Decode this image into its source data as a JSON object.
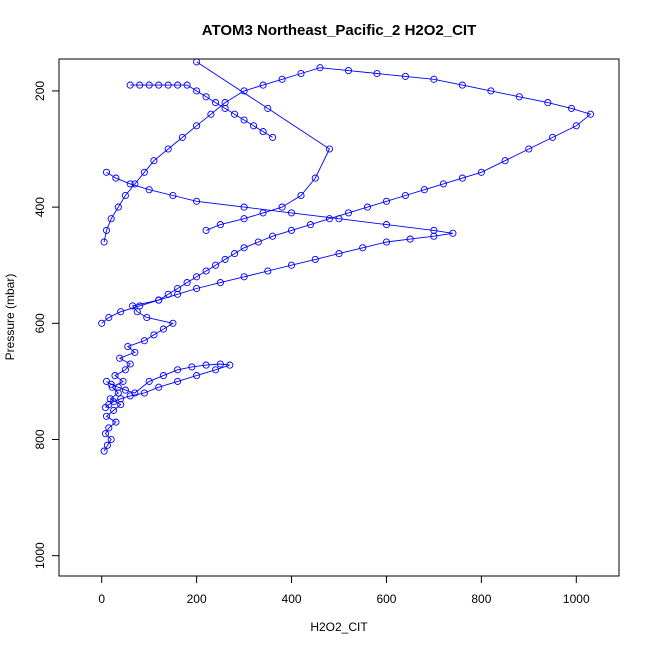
{
  "chart_data": {
    "type": "scatter",
    "title": "ATOM3 Northeast_Pacific_2 H2O2_CIT",
    "xlabel": "H2O2_CIT",
    "ylabel": "Pressure (mbar)",
    "xlim": [
      -90,
      1090
    ],
    "ylim": [
      1035,
      145
    ],
    "y_reversed": true,
    "x_ticks": [
      0,
      200,
      400,
      600,
      800,
      1000
    ],
    "y_ticks": [
      200,
      400,
      600,
      800,
      1000
    ],
    "grid": false,
    "legend": "none",
    "marker": "open-circle",
    "connect_points": true,
    "color": "#0000ff",
    "series": [
      {
        "x": [
          5,
          12,
          20,
          8,
          15,
          30,
          10,
          25,
          40,
          18,
          35,
          22,
          45,
          28,
          50,
          60,
          38,
          70,
          55,
          90,
          110,
          130,
          150,
          95,
          75,
          65,
          120,
          140,
          160,
          180,
          200,
          220,
          240,
          260,
          280,
          300,
          330,
          360,
          400,
          440,
          480,
          520,
          560,
          600,
          640,
          680,
          720,
          760,
          800,
          850,
          900,
          950,
          1000,
          1030,
          990,
          940,
          880,
          820,
          760,
          700,
          640,
          580,
          520,
          460,
          420,
          380,
          340,
          300,
          260,
          230,
          200,
          170,
          140,
          110,
          90,
          70,
          50,
          35,
          20,
          10,
          5
        ],
        "y": [
          820,
          810,
          800,
          790,
          780,
          770,
          760,
          750,
          740,
          730,
          720,
          710,
          700,
          690,
          680,
          670,
          660,
          650,
          640,
          630,
          620,
          610,
          600,
          590,
          580,
          570,
          560,
          550,
          540,
          530,
          520,
          510,
          500,
          490,
          480,
          470,
          460,
          450,
          440,
          430,
          420,
          410,
          400,
          390,
          380,
          370,
          360,
          350,
          340,
          320,
          300,
          280,
          260,
          240,
          230,
          220,
          210,
          200,
          190,
          180,
          175,
          170,
          165,
          160,
          170,
          180,
          190,
          200,
          220,
          240,
          260,
          280,
          300,
          320,
          340,
          360,
          380,
          400,
          420,
          440,
          460
        ]
      },
      {
        "x": [
          0,
          15,
          40,
          80,
          120,
          160,
          200,
          250,
          300,
          350,
          400,
          450,
          500,
          550,
          600,
          650,
          700,
          740,
          700,
          600,
          500,
          400,
          300,
          200,
          150,
          100,
          60,
          30,
          10
        ],
        "y": [
          600,
          590,
          580,
          570,
          560,
          550,
          540,
          530,
          520,
          510,
          500,
          490,
          480,
          470,
          460,
          455,
          450,
          445,
          440,
          430,
          420,
          410,
          400,
          390,
          380,
          370,
          360,
          350,
          340
        ]
      },
      {
        "x": [
          10,
          20,
          35,
          50,
          70,
          100,
          130,
          160,
          190,
          220,
          250,
          270,
          240,
          200,
          160,
          120,
          90,
          60,
          40,
          25,
          15,
          8
        ],
        "y": [
          700,
          705,
          710,
          715,
          720,
          700,
          690,
          680,
          675,
          672,
          670,
          672,
          680,
          690,
          700,
          710,
          720,
          725,
          730,
          735,
          740,
          745
        ]
      },
      {
        "x": [
          60,
          80,
          100,
          120,
          140,
          160,
          180,
          200,
          220,
          240,
          260,
          280,
          300,
          320,
          340,
          360
        ],
        "y": [
          190,
          190,
          190,
          190,
          190,
          190,
          190,
          200,
          210,
          220,
          230,
          240,
          250,
          260,
          270,
          280
        ]
      },
      {
        "x": [
          200,
          350,
          480,
          450,
          420,
          380,
          340,
          300,
          250,
          220
        ],
        "y": [
          150,
          230,
          300,
          350,
          380,
          400,
          410,
          420,
          430,
          440
        ]
      }
    ]
  }
}
